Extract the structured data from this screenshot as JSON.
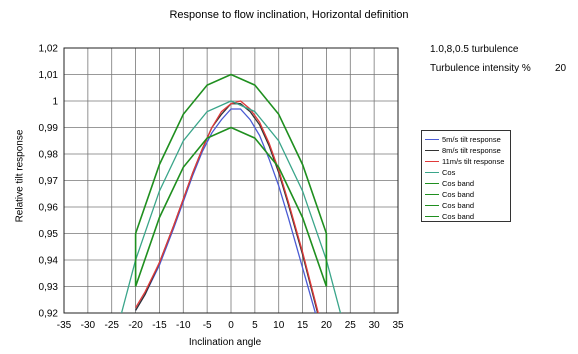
{
  "chart_data": {
    "type": "line",
    "title": "Response to flow inclination, Horizontal definition",
    "xlabel": "Inclination angle",
    "ylabel": "Relative tilt response",
    "xlim": [
      -35,
      35
    ],
    "ylim": [
      0.92,
      1.02
    ],
    "xticks": [
      "-35",
      "-30",
      "-25",
      "-20",
      "-15",
      "-10",
      "-5",
      "0",
      "5",
      "10",
      "15",
      "20",
      "25",
      "30",
      "35"
    ],
    "yticks": [
      "0,92",
      "0,93",
      "0,94",
      "0,95",
      "0,96",
      "0,97",
      "0,98",
      "0,99",
      "1",
      "1,01",
      "1,02"
    ],
    "grid": true,
    "legend_position": "right",
    "annotations": {
      "line1": "1.0,8,0.5 turbulence",
      "line2_label": "Turbulence intensity %",
      "line2_value": "20"
    },
    "series": [
      {
        "name": "5m/s tilt response",
        "color": "#4a5bd4",
        "x": [
          -20,
          -18,
          -15,
          -12,
          -10,
          -8,
          -6,
          -4,
          -2,
          0,
          2,
          4,
          6,
          8,
          10,
          12,
          15,
          18,
          20
        ],
        "y": [
          0.921,
          0.927,
          0.938,
          0.952,
          0.962,
          0.972,
          0.981,
          0.988,
          0.993,
          0.997,
          0.997,
          0.993,
          0.987,
          0.978,
          0.968,
          0.956,
          0.937,
          0.918,
          0.905
        ]
      },
      {
        "name": "8m/s tilt response",
        "color": "#333333",
        "x": [
          -20,
          -18,
          -15,
          -12,
          -10,
          -8,
          -6,
          -4,
          -2,
          0,
          2,
          4,
          6,
          8,
          10,
          12,
          15,
          18,
          20
        ],
        "y": [
          0.921,
          0.927,
          0.939,
          0.953,
          0.963,
          0.973,
          0.982,
          0.99,
          0.995,
          0.999,
          0.999,
          0.996,
          0.991,
          0.983,
          0.973,
          0.961,
          0.942,
          0.921,
          0.907
        ]
      },
      {
        "name": "11m/s tilt response",
        "color": "#e03a3a",
        "x": [
          -20,
          -18,
          -15,
          -12,
          -10,
          -8,
          -6,
          -4,
          -2,
          0,
          2,
          4,
          6,
          8,
          10,
          12,
          15,
          18,
          20
        ],
        "y": [
          0.922,
          0.928,
          0.939,
          0.953,
          0.963,
          0.973,
          0.982,
          0.99,
          0.996,
          0.999,
          1.0,
          0.997,
          0.992,
          0.984,
          0.974,
          0.962,
          0.943,
          0.922,
          0.908
        ]
      },
      {
        "name": "Cos",
        "color": "#3aa58a",
        "x": [
          -25,
          -20,
          -15,
          -10,
          -5,
          0,
          5,
          10,
          15,
          20,
          25
        ],
        "y": [
          0.906,
          0.94,
          0.966,
          0.985,
          0.996,
          1.0,
          0.996,
          0.985,
          0.966,
          0.94,
          0.906
        ]
      },
      {
        "name": "Cos band",
        "color": "#1f8f1f",
        "x": [
          -20,
          -15,
          -10,
          -5,
          0,
          5,
          10,
          15,
          20
        ],
        "y": [
          0.95,
          0.976,
          0.995,
          1.006,
          1.01,
          1.006,
          0.995,
          0.976,
          0.95
        ]
      },
      {
        "name": "Cos band",
        "color": "#1f8f1f",
        "x": [
          -20,
          -15,
          -10,
          -5,
          0,
          5,
          10,
          15,
          20
        ],
        "y": [
          0.93,
          0.956,
          0.975,
          0.986,
          0.99,
          0.986,
          0.975,
          0.956,
          0.93
        ]
      },
      {
        "name": "Cos band",
        "color": "#1f8f1f",
        "x": [
          -20,
          -20
        ],
        "y": [
          0.93,
          0.95
        ]
      },
      {
        "name": "Cos band",
        "color": "#1f8f1f",
        "x": [
          20,
          20
        ],
        "y": [
          0.93,
          0.95
        ]
      }
    ]
  }
}
